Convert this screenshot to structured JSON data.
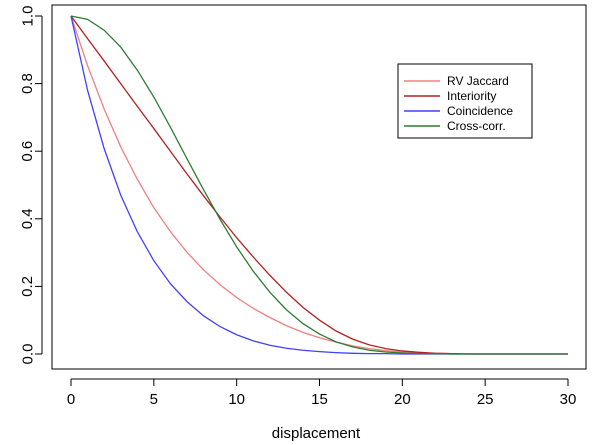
{
  "chart_data": {
    "type": "line",
    "title": "",
    "xlabel": "displacement",
    "ylabel": "",
    "xlim": [
      0,
      30
    ],
    "ylim": [
      0,
      1
    ],
    "x_ticks": [
      "0",
      "5",
      "10",
      "15",
      "20",
      "25",
      "30"
    ],
    "y_ticks": [
      "0.0",
      "0.2",
      "0.4",
      "0.6",
      "0.8",
      "1.0"
    ],
    "grid": false,
    "legend_position": "top-right",
    "x": [
      0,
      1,
      2,
      3,
      4,
      5,
      6,
      7,
      8,
      9,
      10,
      11,
      12,
      13,
      14,
      15,
      16,
      17,
      18,
      19,
      20,
      21,
      22,
      23,
      24,
      25,
      26,
      27,
      28,
      29,
      30
    ],
    "series": [
      {
        "name": "RV Jaccard",
        "color": "#f08080",
        "values": [
          1.0,
          0.853,
          0.725,
          0.613,
          0.517,
          0.433,
          0.362,
          0.301,
          0.249,
          0.205,
          0.167,
          0.135,
          0.108,
          0.084,
          0.064,
          0.048,
          0.035,
          0.024,
          0.016,
          0.01,
          0.006,
          0.003,
          0.002,
          0.001,
          0.0,
          0.0,
          0.0,
          0.0,
          0.0,
          0.0,
          0.0
        ]
      },
      {
        "name": "Interiority",
        "color": "#b22222",
        "values": [
          1.0,
          0.933,
          0.867,
          0.8,
          0.733,
          0.667,
          0.6,
          0.533,
          0.468,
          0.405,
          0.344,
          0.287,
          0.233,
          0.183,
          0.138,
          0.1,
          0.068,
          0.044,
          0.027,
          0.016,
          0.009,
          0.005,
          0.002,
          0.001,
          0.0,
          0.0,
          0.0,
          0.0,
          0.0,
          0.0,
          0.0
        ]
      },
      {
        "name": "Coincidence",
        "color": "#4040ff",
        "values": [
          1.0,
          0.78,
          0.608,
          0.47,
          0.362,
          0.276,
          0.208,
          0.155,
          0.113,
          0.081,
          0.057,
          0.039,
          0.026,
          0.017,
          0.011,
          0.007,
          0.004,
          0.002,
          0.001,
          0.001,
          0.0,
          0.0,
          0.0,
          0.0,
          0.0,
          0.0,
          0.0,
          0.0,
          0.0,
          0.0,
          0.0
        ]
      },
      {
        "name": "Cross-corr.",
        "color": "#2e7d32",
        "values": [
          1.0,
          0.99,
          0.958,
          0.908,
          0.84,
          0.76,
          0.671,
          0.578,
          0.486,
          0.398,
          0.317,
          0.245,
          0.183,
          0.131,
          0.09,
          0.059,
          0.036,
          0.021,
          0.011,
          0.006,
          0.003,
          0.001,
          0.001,
          0.0,
          0.0,
          0.0,
          0.0,
          0.0,
          0.0,
          0.0,
          0.0
        ]
      }
    ]
  }
}
